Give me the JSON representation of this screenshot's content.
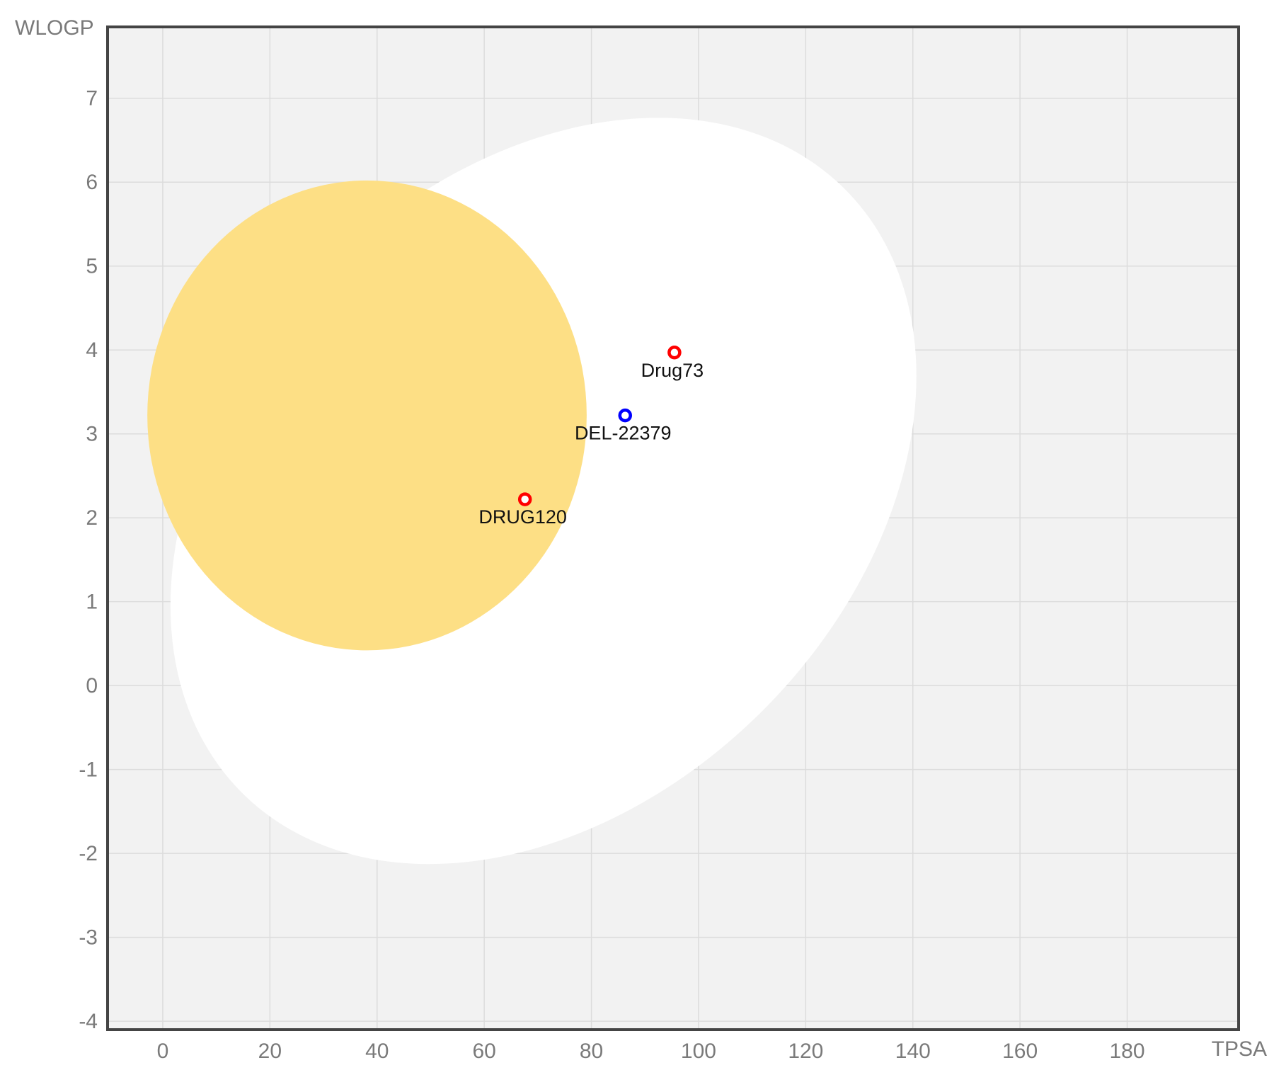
{
  "chart_data": {
    "type": "scatter",
    "xlabel": "TPSA",
    "ylabel": "WLOGP",
    "xlim": [
      -10.3,
      200.8
    ],
    "ylim": [
      -4.1,
      7.85
    ],
    "x_ticks": [
      0,
      20,
      40,
      60,
      80,
      100,
      120,
      140,
      160,
      180
    ],
    "y_ticks": [
      -4,
      -3,
      -2,
      -1,
      0,
      1,
      2,
      3,
      4,
      5,
      6,
      7
    ],
    "grid": true,
    "colors": {
      "plot_background": "#f2f2f2",
      "frame": "#444444",
      "white_region": "#ffffff",
      "yolk_region": "#fddf85",
      "red_point": "#ff0000",
      "blue_point": "#0000ff"
    },
    "regions": [
      {
        "kind": "ellipse",
        "fill": "white_region",
        "center": [
          71.05,
          2.32
        ],
        "semi_axes": [
          79.6,
          3.7
        ],
        "rotation_deg": -45
      },
      {
        "kind": "ellipse",
        "fill": "yolk_region",
        "center": [
          38.12,
          3.22
        ],
        "semi_axes": [
          41,
          2.8
        ],
        "rotation_deg": 0
      }
    ],
    "points": [
      {
        "label": "Drug73",
        "x": 95.5,
        "y": 3.97,
        "color": "red_point"
      },
      {
        "label": "DEL-22379",
        "x": 86.3,
        "y": 3.22,
        "color": "blue_point"
      },
      {
        "label": "DRUG120",
        "x": 67.6,
        "y": 2.22,
        "color": "red_point"
      }
    ]
  }
}
